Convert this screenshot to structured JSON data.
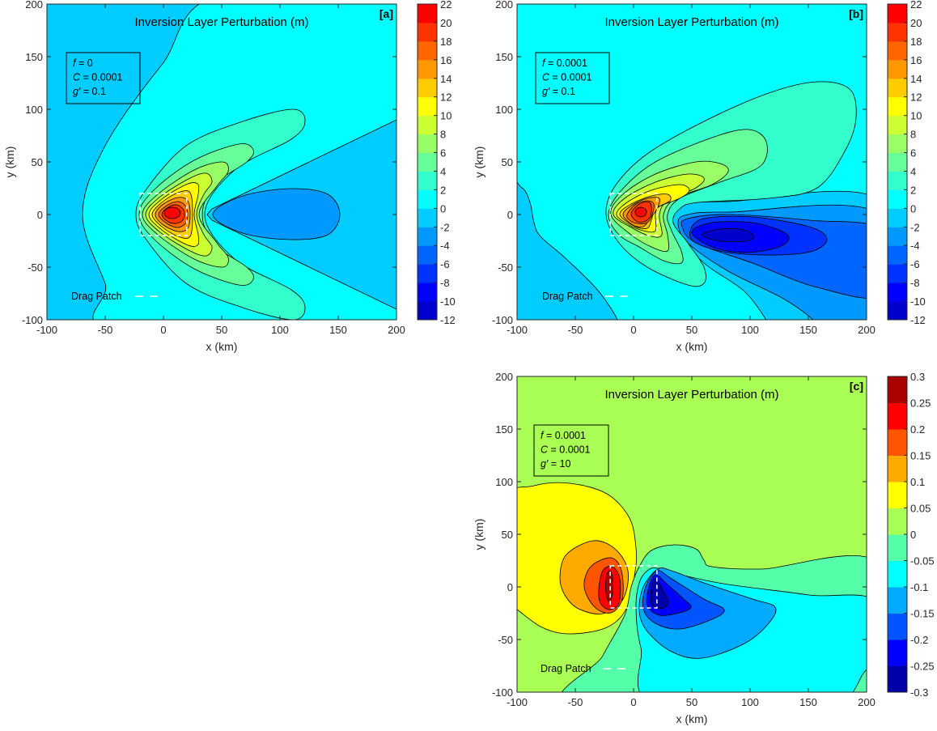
{
  "chart_data": [
    {
      "panel": "a",
      "type": "contour",
      "panel_label": "[a]",
      "title": "Inversion Layer Perturbation (m)",
      "xlabel": "x (km)",
      "ylabel": "y (km)",
      "xlim": [
        -100,
        200
      ],
      "ylim": [
        -100,
        200
      ],
      "xticks": [
        "-100",
        "-50",
        "0",
        "50",
        "100",
        "150",
        "200"
      ],
      "yticks": [
        "-100",
        "-50",
        "0",
        "50",
        "100",
        "150",
        "200"
      ],
      "params": [
        {
          "symbol": "f",
          "value": " = 0"
        },
        {
          "symbol": "C",
          "value": " = 0.0001"
        },
        {
          "symbol": "g′",
          "value": " = 0.1"
        }
      ],
      "legend": "Drag Patch",
      "drag_patch": {
        "x": [
          -20,
          20
        ],
        "y": [
          -20,
          20
        ]
      },
      "colorbar": {
        "ticks": [
          "22",
          "20",
          "18",
          "16",
          "14",
          "12",
          "10",
          "8",
          "6",
          "4",
          "2",
          "0",
          "-2",
          "-4",
          "-6",
          "-8",
          "-10",
          "-12"
        ],
        "levels": [
          -12,
          -10,
          -8,
          -6,
          -4,
          -2,
          0,
          2,
          4,
          6,
          8,
          10,
          12,
          14,
          16,
          18,
          20,
          22
        ],
        "colors": [
          "#0000CC",
          "#0000FF",
          "#0033FF",
          "#0066FF",
          "#0099FF",
          "#00CCFF",
          "#00FFFF",
          "#33FFCC",
          "#66FF99",
          "#99FF66",
          "#CCFF33",
          "#FFFF00",
          "#FFCC00",
          "#FF9900",
          "#FF6600",
          "#FF3300",
          "#FF0000"
        ]
      },
      "max_value_approx": 21,
      "min_value_approx": -3
    },
    {
      "panel": "b",
      "type": "contour",
      "panel_label": "[b]",
      "title": "Inversion Layer Perturbation (m)",
      "xlabel": "x (km)",
      "ylabel": "y (km)",
      "xlim": [
        -100,
        200
      ],
      "ylim": [
        -100,
        200
      ],
      "xticks": [
        "-100",
        "-50",
        "0",
        "50",
        "100",
        "150",
        "200"
      ],
      "yticks": [
        "-100",
        "-50",
        "0",
        "50",
        "100",
        "150",
        "200"
      ],
      "params": [
        {
          "symbol": "f",
          "value": " = 0.0001"
        },
        {
          "symbol": "C",
          "value": " = 0.0001"
        },
        {
          "symbol": "g′",
          "value": " = 0.1"
        }
      ],
      "legend": "Drag Patch",
      "drag_patch": {
        "x": [
          -20,
          20
        ],
        "y": [
          -20,
          20
        ]
      },
      "colorbar": {
        "ticks": [
          "22",
          "20",
          "18",
          "16",
          "14",
          "12",
          "10",
          "8",
          "6",
          "4",
          "2",
          "0",
          "-2",
          "-4",
          "-6",
          "-8",
          "-10",
          "-12"
        ],
        "levels": [
          -12,
          -10,
          -8,
          -6,
          -4,
          -2,
          0,
          2,
          4,
          6,
          8,
          10,
          12,
          14,
          16,
          18,
          20,
          22
        ],
        "colors": [
          "#0000CC",
          "#0000FF",
          "#0033FF",
          "#0066FF",
          "#0099FF",
          "#00CCFF",
          "#00FFFF",
          "#33FFCC",
          "#66FF99",
          "#99FF66",
          "#CCFF33",
          "#FFFF00",
          "#FFCC00",
          "#FF9900",
          "#FF6600",
          "#FF3300",
          "#FF0000"
        ]
      },
      "max_value_approx": 21,
      "min_value_approx": -11
    },
    {
      "panel": "c",
      "type": "contour",
      "panel_label": "[c]",
      "title": "Inversion Layer Perturbation (m)",
      "xlabel": "x (km)",
      "ylabel": "y (km)",
      "xlim": [
        -100,
        200
      ],
      "ylim": [
        -100,
        200
      ],
      "xticks": [
        "-100",
        "-50",
        "0",
        "50",
        "100",
        "150",
        "200"
      ],
      "yticks": [
        "-100",
        "-50",
        "0",
        "50",
        "100",
        "150",
        "200"
      ],
      "params": [
        {
          "symbol": "f",
          "value": " = 0.0001"
        },
        {
          "symbol": "C",
          "value": " = 0.0001"
        },
        {
          "symbol": "g′",
          "value": " = 10"
        }
      ],
      "legend": "Drag Patch",
      "drag_patch": {
        "x": [
          -20,
          20
        ],
        "y": [
          -20,
          20
        ]
      },
      "colorbar": {
        "ticks": [
          "0.3",
          "0.25",
          "0.2",
          "0.15",
          "0.1",
          "0.05",
          "0",
          "-0.05",
          "-0.1",
          "-0.15",
          "-0.2",
          "-0.25",
          "-0.3"
        ],
        "levels": [
          -0.3,
          -0.25,
          -0.2,
          -0.15,
          -0.1,
          -0.05,
          0,
          0.05,
          0.1,
          0.15,
          0.2,
          0.25,
          0.3
        ],
        "colors": [
          "#0000AA",
          "#0000FF",
          "#0055FF",
          "#00AAFF",
          "#00FFFF",
          "#55FFAA",
          "#AAFF55",
          "#FFFF00",
          "#FFAA00",
          "#FF5500",
          "#FF0000",
          "#AA0000"
        ]
      },
      "max_value_approx": 0.28,
      "min_value_approx": -0.27
    }
  ]
}
